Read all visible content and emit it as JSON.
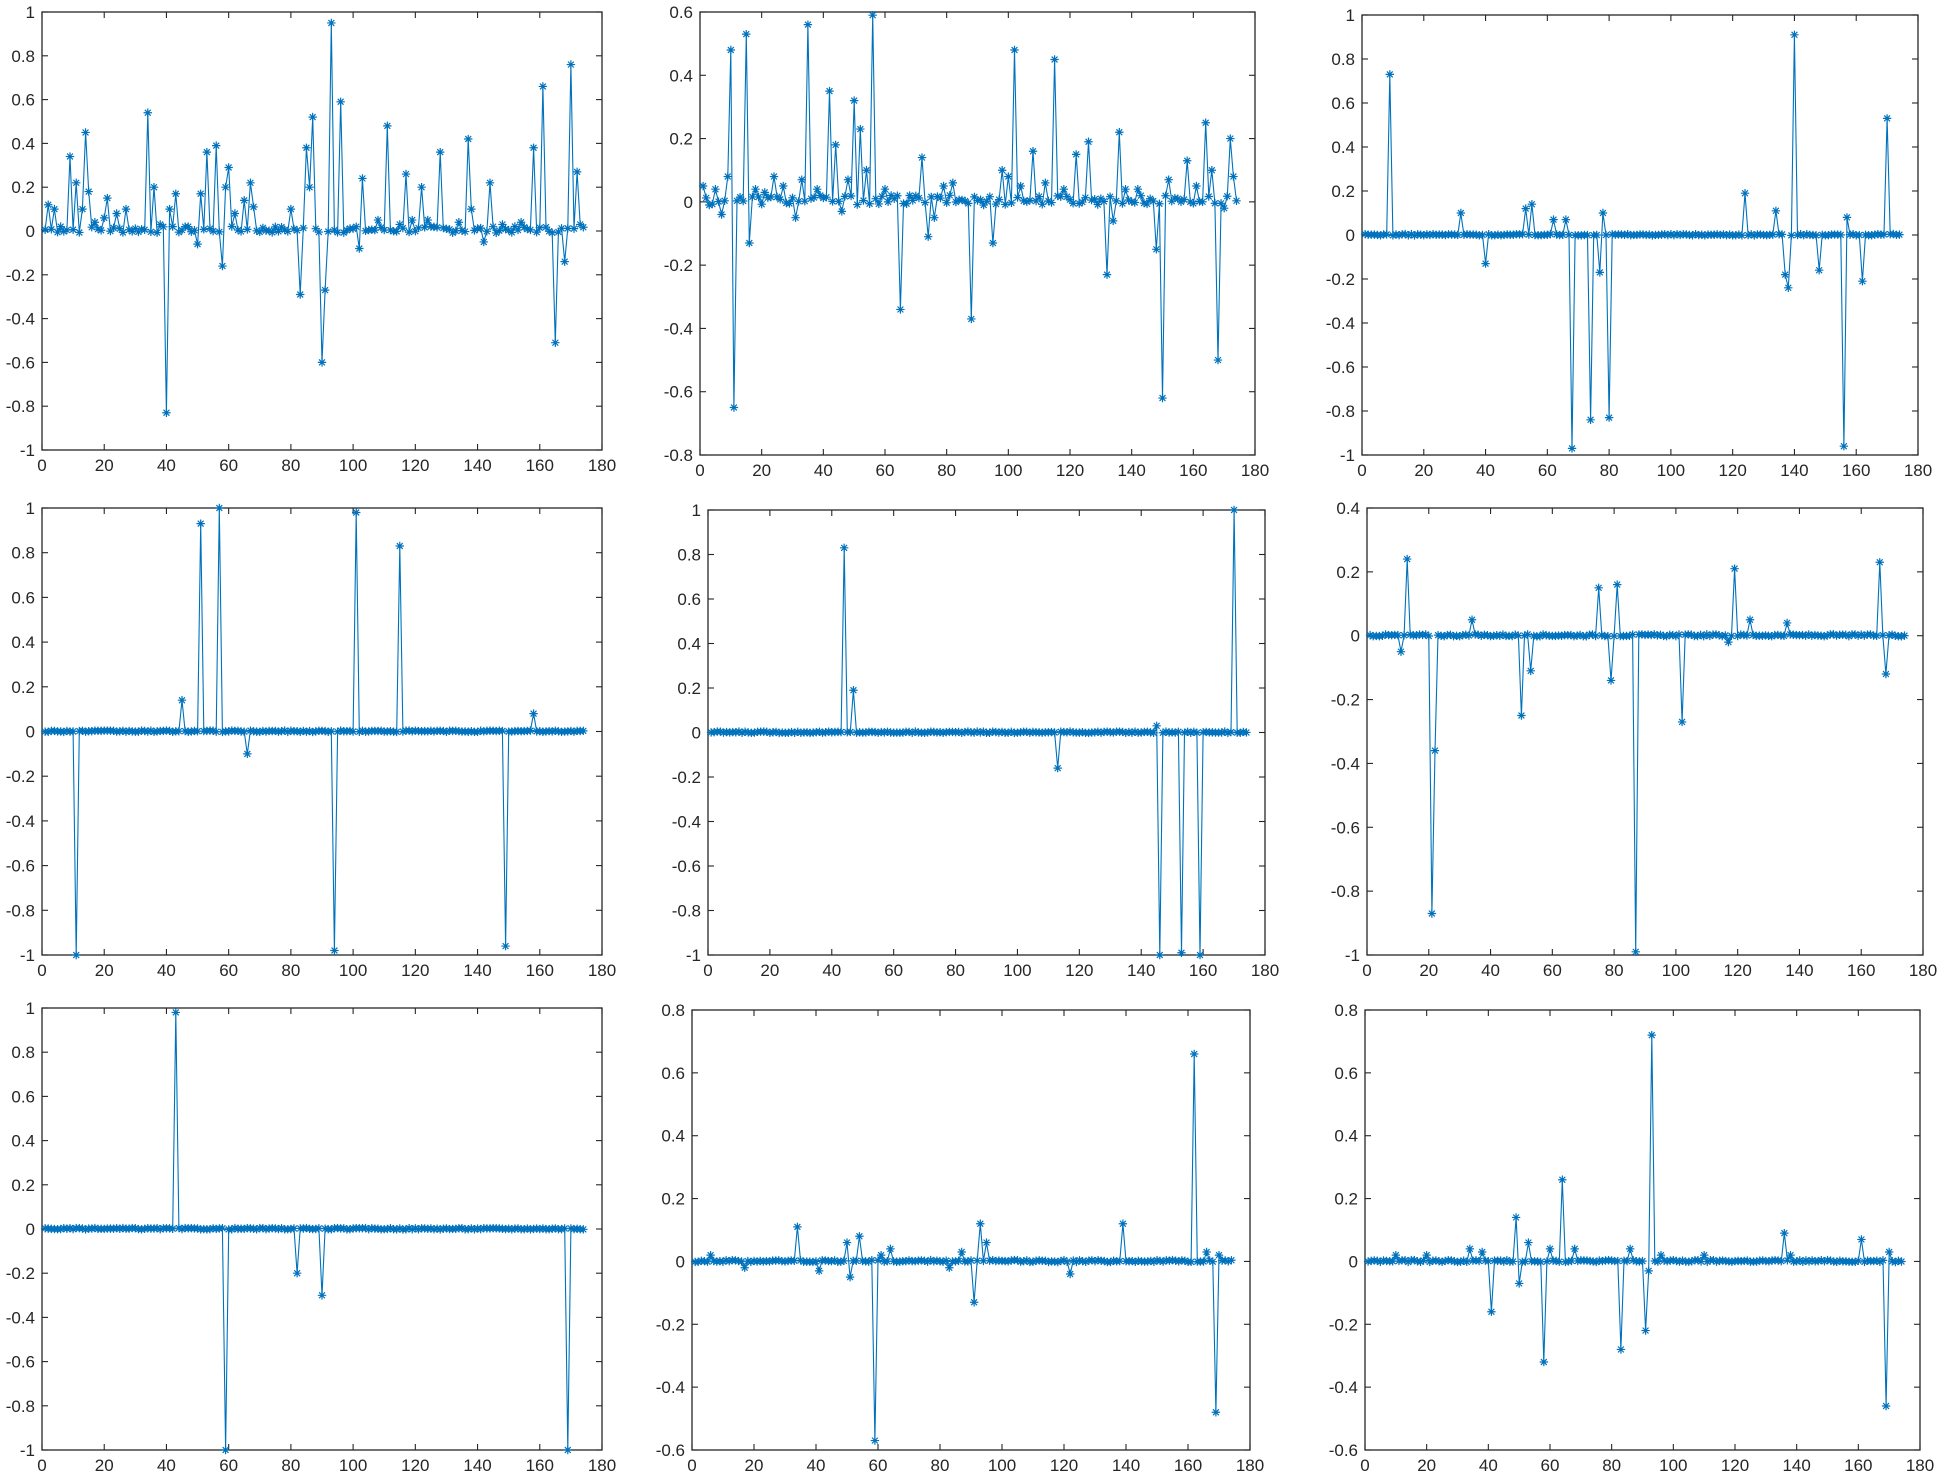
{
  "figure": {
    "rows": 3,
    "cols": 3,
    "marker": "*",
    "line_color": "#0072BD"
  },
  "chart_data": [
    {
      "type": "line",
      "xlim": [
        0,
        180
      ],
      "ylim": [
        -1,
        1
      ],
      "xstep": 20,
      "ystep": 0.2,
      "x_ticks": [
        "0",
        "20",
        "40",
        "60",
        "80",
        "100",
        "120",
        "140",
        "160",
        "180"
      ],
      "y_ticks": [
        "-1",
        "-0.8",
        "-0.6",
        "-0.4",
        "-0.2",
        "0",
        "0.2",
        "0.4",
        "0.6",
        "0.8",
        "1"
      ],
      "n": 174,
      "spikes": [
        [
          2,
          0.12
        ],
        [
          4,
          0.1
        ],
        [
          6,
          0.02
        ],
        [
          9,
          0.34
        ],
        [
          11,
          0.22
        ],
        [
          13,
          0.1
        ],
        [
          14,
          0.45
        ],
        [
          15,
          0.18
        ],
        [
          17,
          0.04
        ],
        [
          20,
          0.06
        ],
        [
          21,
          0.15
        ],
        [
          24,
          0.08
        ],
        [
          27,
          0.1
        ],
        [
          34,
          0.54
        ],
        [
          36,
          0.2
        ],
        [
          38,
          0.03
        ],
        [
          40,
          -0.83
        ],
        [
          41,
          0.1
        ],
        [
          43,
          0.17
        ],
        [
          47,
          0.02
        ],
        [
          50,
          -0.06
        ],
        [
          51,
          0.17
        ],
        [
          53,
          0.36
        ],
        [
          56,
          0.39
        ],
        [
          58,
          -0.16
        ],
        [
          59,
          0.2
        ],
        [
          60,
          0.29
        ],
        [
          62,
          0.08
        ],
        [
          65,
          0.14
        ],
        [
          67,
          0.22
        ],
        [
          68,
          0.11
        ],
        [
          80,
          0.1
        ],
        [
          83,
          -0.29
        ],
        [
          85,
          0.38
        ],
        [
          86,
          0.2
        ],
        [
          87,
          0.52
        ],
        [
          90,
          -0.6
        ],
        [
          91,
          -0.27
        ],
        [
          93,
          0.95
        ],
        [
          96,
          0.59
        ],
        [
          102,
          -0.08
        ],
        [
          103,
          0.24
        ],
        [
          108,
          0.05
        ],
        [
          111,
          0.48
        ],
        [
          115,
          0.03
        ],
        [
          117,
          0.26
        ],
        [
          119,
          0.05
        ],
        [
          122,
          0.2
        ],
        [
          124,
          0.05
        ],
        [
          128,
          0.36
        ],
        [
          134,
          0.04
        ],
        [
          137,
          0.42
        ],
        [
          138,
          0.1
        ],
        [
          142,
          -0.05
        ],
        [
          144,
          0.22
        ],
        [
          148,
          0.03
        ],
        [
          154,
          0.04
        ],
        [
          158,
          0.38
        ],
        [
          161,
          0.66
        ],
        [
          165,
          -0.51
        ],
        [
          168,
          -0.14
        ],
        [
          170,
          0.76
        ],
        [
          172,
          0.27
        ],
        [
          173,
          0.03
        ]
      ]
    },
    {
      "type": "line",
      "xlim": [
        0,
        180
      ],
      "ylim": [
        -0.8,
        0.6
      ],
      "xstep": 20,
      "ystep": 0.2,
      "x_ticks": [
        "0",
        "20",
        "40",
        "60",
        "80",
        "100",
        "120",
        "140",
        "160",
        "180"
      ],
      "y_ticks": [
        "-0.8",
        "-0.6",
        "-0.4",
        "-0.2",
        "0",
        "0.2",
        "0.4",
        "0.6"
      ],
      "n": 174,
      "spikes": [
        [
          1,
          0.05
        ],
        [
          3,
          -0.01
        ],
        [
          5,
          0.04
        ],
        [
          7,
          -0.04
        ],
        [
          9,
          0.08
        ],
        [
          10,
          0.48
        ],
        [
          11,
          -0.65
        ],
        [
          15,
          0.53
        ],
        [
          16,
          -0.13
        ],
        [
          18,
          0.04
        ],
        [
          21,
          0.03
        ],
        [
          24,
          0.08
        ],
        [
          27,
          0.05
        ],
        [
          31,
          -0.05
        ],
        [
          33,
          0.07
        ],
        [
          35,
          0.56
        ],
        [
          38,
          0.04
        ],
        [
          42,
          0.35
        ],
        [
          44,
          0.18
        ],
        [
          46,
          -0.03
        ],
        [
          48,
          0.07
        ],
        [
          50,
          0.32
        ],
        [
          52,
          0.23
        ],
        [
          54,
          0.1
        ],
        [
          56,
          0.59
        ],
        [
          57,
          0.01
        ],
        [
          60,
          0.04
        ],
        [
          65,
          -0.34
        ],
        [
          68,
          0.02
        ],
        [
          72,
          0.14
        ],
        [
          74,
          -0.11
        ],
        [
          76,
          -0.05
        ],
        [
          79,
          0.05
        ],
        [
          82,
          0.06
        ],
        [
          88,
          -0.37
        ],
        [
          92,
          -0.01
        ],
        [
          95,
          -0.13
        ],
        [
          98,
          0.1
        ],
        [
          100,
          0.08
        ],
        [
          102,
          0.48
        ],
        [
          104,
          0.05
        ],
        [
          108,
          0.16
        ],
        [
          112,
          0.06
        ],
        [
          115,
          0.45
        ],
        [
          118,
          0.04
        ],
        [
          122,
          0.15
        ],
        [
          126,
          0.19
        ],
        [
          130,
          0.01
        ],
        [
          132,
          -0.23
        ],
        [
          134,
          -0.06
        ],
        [
          136,
          0.22
        ],
        [
          138,
          0.04
        ],
        [
          142,
          0.04
        ],
        [
          148,
          -0.15
        ],
        [
          150,
          -0.62
        ],
        [
          152,
          0.07
        ],
        [
          155,
          0.01
        ],
        [
          158,
          0.13
        ],
        [
          161,
          0.05
        ],
        [
          164,
          0.25
        ],
        [
          166,
          0.1
        ],
        [
          168,
          -0.5
        ],
        [
          170,
          -0.02
        ],
        [
          172,
          0.2
        ],
        [
          173,
          0.08
        ]
      ]
    },
    {
      "type": "line",
      "xlim": [
        0,
        180
      ],
      "ylim": [
        -1,
        1
      ],
      "xstep": 20,
      "ystep": 0.2,
      "x_ticks": [
        "0",
        "20",
        "40",
        "60",
        "80",
        "100",
        "120",
        "140",
        "160",
        "180"
      ],
      "y_ticks": [
        "-1",
        "-0.8",
        "-0.6",
        "-0.4",
        "-0.2",
        "0",
        "0.2",
        "0.4",
        "0.6",
        "0.8",
        "1"
      ],
      "n": 174,
      "spikes": [
        [
          9,
          0.73
        ],
        [
          32,
          0.1
        ],
        [
          40,
          -0.13
        ],
        [
          53,
          0.12
        ],
        [
          55,
          0.14
        ],
        [
          62,
          0.07
        ],
        [
          66,
          0.07
        ],
        [
          68,
          -0.97
        ],
        [
          74,
          -0.84
        ],
        [
          77,
          -0.17
        ],
        [
          78,
          0.1
        ],
        [
          80,
          -0.83
        ],
        [
          124,
          0.19
        ],
        [
          134,
          0.11
        ],
        [
          137,
          -0.18
        ],
        [
          138,
          -0.24
        ],
        [
          140,
          0.91
        ],
        [
          148,
          -0.16
        ],
        [
          156,
          -0.96
        ],
        [
          157,
          0.08
        ],
        [
          162,
          -0.21
        ],
        [
          170,
          0.53
        ]
      ]
    },
    {
      "type": "line",
      "xlim": [
        0,
        180
      ],
      "ylim": [
        -1,
        1
      ],
      "xstep": 20,
      "ystep": 0.2,
      "x_ticks": [
        "0",
        "20",
        "40",
        "60",
        "80",
        "100",
        "120",
        "140",
        "160",
        "180"
      ],
      "y_ticks": [
        "-1",
        "-0.8",
        "-0.6",
        "-0.4",
        "-0.2",
        "0",
        "0.2",
        "0.4",
        "0.6",
        "0.8",
        "1"
      ],
      "n": 174,
      "spikes": [
        [
          11,
          -1.0
        ],
        [
          45,
          0.14
        ],
        [
          51,
          0.93
        ],
        [
          57,
          1.0
        ],
        [
          66,
          -0.1
        ],
        [
          94,
          -0.98
        ],
        [
          101,
          0.98
        ],
        [
          115,
          0.83
        ],
        [
          149,
          -0.96
        ],
        [
          158,
          0.08
        ]
      ]
    },
    {
      "type": "line",
      "xlim": [
        0,
        180
      ],
      "ylim": [
        -1,
        1
      ],
      "xstep": 20,
      "ystep": 0.2,
      "x_ticks": [
        "0",
        "20",
        "40",
        "60",
        "80",
        "100",
        "120",
        "140",
        "160",
        "180"
      ],
      "y_ticks": [
        "-1",
        "-0.8",
        "-0.6",
        "-0.4",
        "-0.2",
        "0",
        "0.2",
        "0.4",
        "0.6",
        "0.8",
        "1"
      ],
      "n": 174,
      "spikes": [
        [
          44,
          0.83
        ],
        [
          47,
          0.19
        ],
        [
          113,
          -0.16
        ],
        [
          145,
          0.03
        ],
        [
          146,
          -1.0
        ],
        [
          153,
          -0.99
        ],
        [
          159,
          -1.0
        ],
        [
          170,
          1.0
        ]
      ]
    },
    {
      "type": "line",
      "xlim": [
        0,
        180
      ],
      "ylim": [
        -1,
        0.4
      ],
      "xstep": 20,
      "ystep": 0.2,
      "x_ticks": [
        "0",
        "20",
        "40",
        "60",
        "80",
        "100",
        "120",
        "140",
        "160",
        "180"
      ],
      "y_ticks": [
        "-1",
        "-0.8",
        "-0.6",
        "-0.4",
        "-0.2",
        "0",
        "0.2",
        "0.4"
      ],
      "n": 174,
      "spikes": [
        [
          11,
          -0.05
        ],
        [
          13,
          0.24
        ],
        [
          21,
          -0.87
        ],
        [
          22,
          -0.36
        ],
        [
          34,
          0.05
        ],
        [
          50,
          -0.25
        ],
        [
          53,
          -0.11
        ],
        [
          75,
          0.15
        ],
        [
          79,
          -0.14
        ],
        [
          81,
          0.16
        ],
        [
          87,
          -0.99
        ],
        [
          102,
          -0.27
        ],
        [
          117,
          -0.02
        ],
        [
          119,
          0.21
        ],
        [
          124,
          0.05
        ],
        [
          136,
          0.04
        ],
        [
          166,
          0.23
        ],
        [
          168,
          -0.12
        ]
      ]
    },
    {
      "type": "line",
      "xlim": [
        0,
        180
      ],
      "ylim": [
        -1,
        1
      ],
      "xstep": 20,
      "ystep": 0.2,
      "x_ticks": [
        "0",
        "20",
        "40",
        "60",
        "80",
        "100",
        "120",
        "140",
        "160",
        "180"
      ],
      "y_ticks": [
        "-1",
        "-0.8",
        "-0.6",
        "-0.4",
        "-0.2",
        "0",
        "0.2",
        "0.4",
        "0.6",
        "0.8",
        "1"
      ],
      "n": 174,
      "spikes": [
        [
          43,
          0.98
        ],
        [
          59,
          -1.0
        ],
        [
          82,
          -0.2
        ],
        [
          90,
          -0.3
        ],
        [
          169,
          -1.0
        ]
      ]
    },
    {
      "type": "line",
      "xlim": [
        0,
        180
      ],
      "ylim": [
        -0.6,
        0.8
      ],
      "xstep": 20,
      "ystep": 0.2,
      "x_ticks": [
        "0",
        "20",
        "40",
        "60",
        "80",
        "100",
        "120",
        "140",
        "160",
        "180"
      ],
      "y_ticks": [
        "-0.6",
        "-0.4",
        "-0.2",
        "0",
        "0.2",
        "0.4",
        "0.6",
        "0.8"
      ],
      "n": 174,
      "spikes": [
        [
          6,
          0.02
        ],
        [
          17,
          -0.02
        ],
        [
          34,
          0.11
        ],
        [
          41,
          -0.03
        ],
        [
          50,
          0.06
        ],
        [
          51,
          -0.05
        ],
        [
          54,
          0.08
        ],
        [
          59,
          -0.57
        ],
        [
          61,
          0.02
        ],
        [
          64,
          0.04
        ],
        [
          83,
          -0.02
        ],
        [
          87,
          0.03
        ],
        [
          91,
          -0.13
        ],
        [
          93,
          0.12
        ],
        [
          95,
          0.06
        ],
        [
          122,
          -0.04
        ],
        [
          139,
          0.12
        ],
        [
          162,
          0.66
        ],
        [
          166,
          0.03
        ],
        [
          169,
          -0.48
        ],
        [
          170,
          0.02
        ]
      ]
    },
    {
      "type": "line",
      "xlim": [
        0,
        180
      ],
      "ylim": [
        -0.6,
        0.8
      ],
      "xstep": 20,
      "ystep": 0.2,
      "x_ticks": [
        "0",
        "20",
        "40",
        "60",
        "80",
        "100",
        "120",
        "140",
        "160",
        "180"
      ],
      "y_ticks": [
        "-0.6",
        "-0.4",
        "-0.2",
        "0",
        "0.2",
        "0.4",
        "0.6",
        "0.8"
      ],
      "n": 174,
      "spikes": [
        [
          10,
          0.02
        ],
        [
          20,
          0.02
        ],
        [
          34,
          0.04
        ],
        [
          38,
          0.03
        ],
        [
          41,
          -0.16
        ],
        [
          49,
          0.14
        ],
        [
          50,
          -0.07
        ],
        [
          53,
          0.06
        ],
        [
          58,
          -0.32
        ],
        [
          60,
          0.04
        ],
        [
          64,
          0.26
        ],
        [
          68,
          0.04
        ],
        [
          83,
          -0.28
        ],
        [
          86,
          0.04
        ],
        [
          91,
          -0.22
        ],
        [
          92,
          -0.03
        ],
        [
          93,
          0.72
        ],
        [
          96,
          0.02
        ],
        [
          110,
          0.02
        ],
        [
          136,
          0.09
        ],
        [
          138,
          0.02
        ],
        [
          161,
          0.07
        ],
        [
          169,
          -0.46
        ],
        [
          170,
          0.03
        ]
      ]
    }
  ]
}
